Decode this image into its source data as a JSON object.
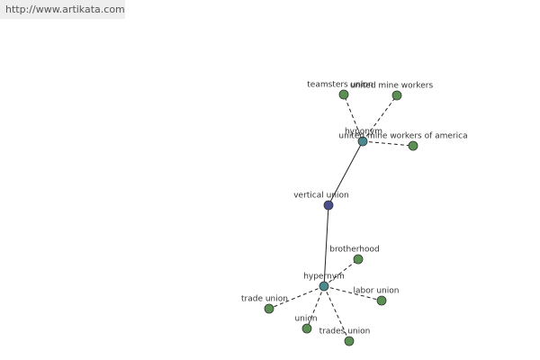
{
  "header": {
    "url": "http://www.artikata.com"
  },
  "nodes": [
    {
      "label": "vertical union"
    },
    {
      "label": "hyponym"
    },
    {
      "label": "hypernym"
    },
    {
      "label": "teamsters union"
    },
    {
      "label": "united mine workers"
    },
    {
      "label": "united mine workers of america"
    },
    {
      "label": "brotherhood"
    },
    {
      "label": "labor union"
    },
    {
      "label": "trades union"
    },
    {
      "label": "union"
    },
    {
      "label": "trade union"
    }
  ]
}
